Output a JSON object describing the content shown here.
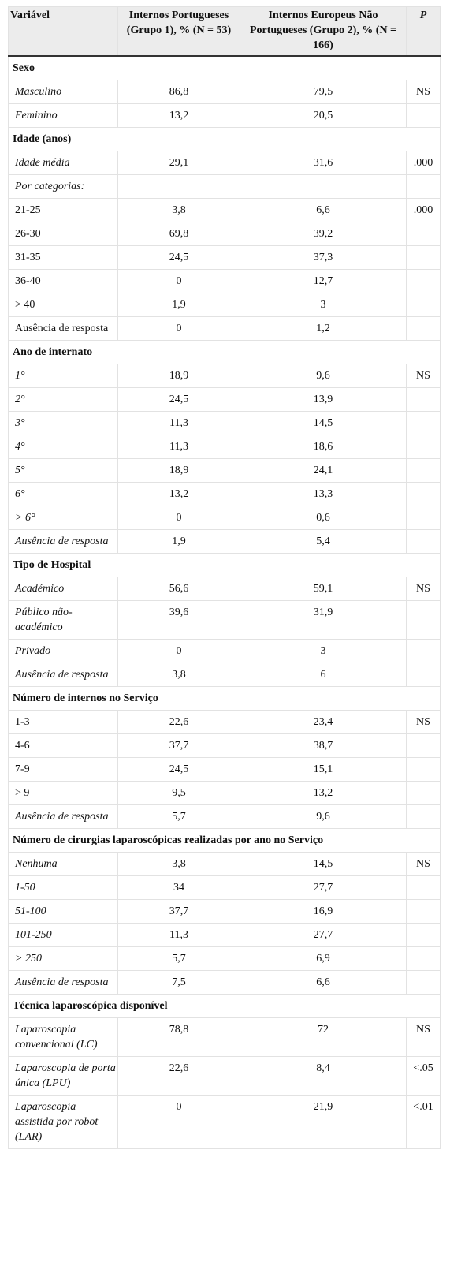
{
  "table": {
    "header": [
      "Variável",
      "Internos Portugueses (Grupo 1), % (N = 53)",
      "Internos Europeus Não Portugueses (Grupo 2), % (N = 166)",
      "P"
    ],
    "sections": [
      {
        "title": "Sexo",
        "rows": [
          {
            "cells": [
              "Masculino",
              "86,8",
              "79,5",
              "NS"
            ],
            "italic": true
          },
          {
            "cells": [
              "Feminino",
              "13,2",
              "20,5",
              null
            ],
            "italic": true
          }
        ]
      },
      {
        "title": "Idade (anos)",
        "rows": [
          {
            "cells": [
              "Idade média",
              "29,1",
              "31,6",
              ".000"
            ],
            "italic": true
          },
          {
            "cells": [
              "Por categorias:",
              null,
              null,
              null
            ],
            "italic": true
          },
          {
            "cells": [
              "21-25",
              "3,8",
              "6,6",
              ".000"
            ],
            "italic": false
          },
          {
            "cells": [
              "26-30",
              "69,8",
              "39,2",
              null
            ],
            "italic": false
          },
          {
            "cells": [
              "31-35",
              "24,5",
              "37,3",
              null
            ],
            "italic": false
          },
          {
            "cells": [
              "36-40",
              "0",
              "12,7",
              null
            ],
            "italic": false
          },
          {
            "cells": [
              "> 40",
              "1,9",
              "3",
              null
            ],
            "italic": false
          },
          {
            "cells": [
              "Ausência de resposta",
              "0",
              "1,2",
              null
            ],
            "italic": false
          }
        ]
      },
      {
        "title": "Ano de internato",
        "rows": [
          {
            "cells": [
              "1°",
              "18,9",
              "9,6",
              "NS"
            ],
            "italic": true
          },
          {
            "cells": [
              "2°",
              "24,5",
              "13,9",
              null
            ],
            "italic": true
          },
          {
            "cells": [
              "3°",
              "11,3",
              "14,5",
              null
            ],
            "italic": true
          },
          {
            "cells": [
              "4°",
              "11,3",
              "18,6",
              null
            ],
            "italic": true
          },
          {
            "cells": [
              "5°",
              "18,9",
              "24,1",
              null
            ],
            "italic": true
          },
          {
            "cells": [
              "6°",
              "13,2",
              "13,3",
              null
            ],
            "italic": true
          },
          {
            "cells": [
              "> 6°",
              "0",
              "0,6",
              null
            ],
            "italic": true
          },
          {
            "cells": [
              "Ausência de resposta",
              "1,9",
              "5,4",
              null
            ],
            "italic": true
          }
        ]
      },
      {
        "title": "Tipo de Hospital",
        "rows": [
          {
            "cells": [
              "Académico",
              "56,6",
              "59,1",
              "NS"
            ],
            "italic": true
          },
          {
            "cells": [
              "Público não-académico",
              "39,6",
              "31,9",
              null
            ],
            "italic": true
          },
          {
            "cells": [
              "Privado",
              "0",
              "3",
              null
            ],
            "italic": true
          },
          {
            "cells": [
              "Ausência de resposta",
              "3,8",
              "6",
              null
            ],
            "italic": true
          }
        ]
      },
      {
        "title": "Número de internos no Serviço",
        "rows": [
          {
            "cells": [
              "1-3",
              "22,6",
              "23,4",
              "NS"
            ],
            "italic": false
          },
          {
            "cells": [
              "4-6",
              "37,7",
              "38,7",
              null
            ],
            "italic": false
          },
          {
            "cells": [
              "7-9",
              "24,5",
              "15,1",
              null
            ],
            "italic": false
          },
          {
            "cells": [
              "> 9",
              "9,5",
              "13,2",
              null
            ],
            "italic": false
          },
          {
            "cells": [
              "Ausência de resposta",
              "5,7",
              "9,6",
              null
            ],
            "italic": true
          }
        ]
      },
      {
        "title": "Número de cirurgias laparoscópicas realizadas por ano no Serviço",
        "rows": [
          {
            "cells": [
              "Nenhuma",
              "3,8",
              "14,5",
              "NS"
            ],
            "italic": true
          },
          {
            "cells": [
              "1-50",
              "34",
              "27,7",
              null
            ],
            "italic": true
          },
          {
            "cells": [
              "51-100",
              "37,7",
              "16,9",
              null
            ],
            "italic": true
          },
          {
            "cells": [
              "101-250",
              "11,3",
              "27,7",
              null
            ],
            "italic": true
          },
          {
            "cells": [
              "> 250",
              "5,7",
              "6,9",
              null
            ],
            "italic": true
          },
          {
            "cells": [
              "Ausência de resposta",
              "7,5",
              "6,6",
              null
            ],
            "italic": true
          }
        ]
      },
      {
        "title": "Técnica laparoscópica disponível",
        "rows": [
          {
            "cells": [
              "Laparoscopia convencional (LC)",
              "78,8",
              "72",
              "NS"
            ],
            "italic": true
          },
          {
            "cells": [
              "Laparoscopia de porta única (LPU)",
              "22,6",
              "8,4",
              "<.05"
            ],
            "italic": true
          },
          {
            "cells": [
              "Laparoscopia assistida por robot (LAR)",
              "0",
              "21,9",
              "<.01"
            ],
            "italic": true
          }
        ]
      }
    ]
  }
}
